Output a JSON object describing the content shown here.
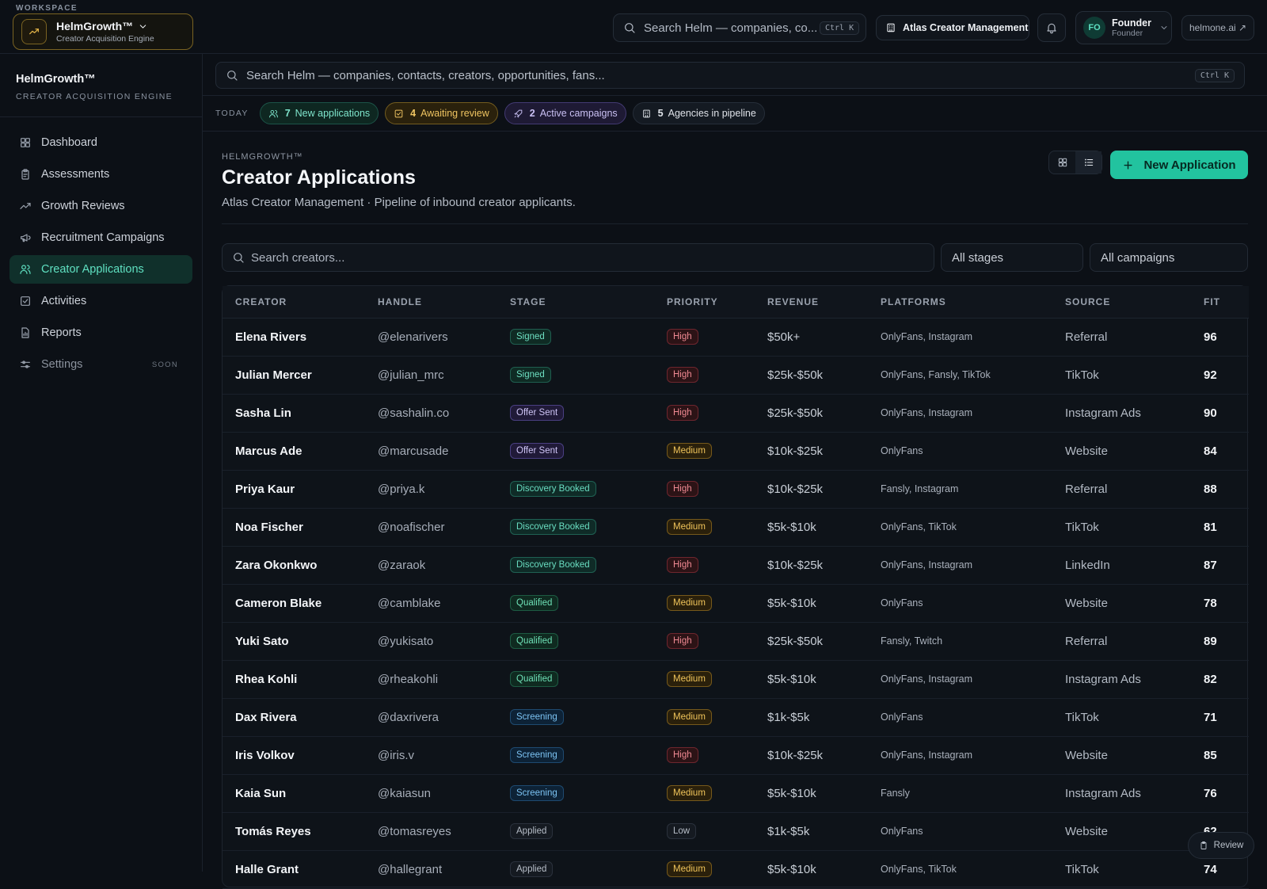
{
  "topbar": {
    "workspace_label": "WORKSPACE",
    "workspace_name": "HelmGrowth™",
    "workspace_sub": "Creator Acquisition Engine",
    "search_placeholder": "Search Helm — companies, co...",
    "search_shortcut": "Ctrl K",
    "org_name": "Atlas Creator Management",
    "user_initials": "FO",
    "user_name": "Founder",
    "user_role": "Founder",
    "external_link": "helmone.ai ↗"
  },
  "sidebar": {
    "brand_name": "HelmGrowth™",
    "brand_tag": "CREATOR ACQUISITION ENGINE",
    "items": [
      {
        "label": "Dashboard",
        "icon": "grid-icon"
      },
      {
        "label": "Assessments",
        "icon": "clipboard-icon"
      },
      {
        "label": "Growth Reviews",
        "icon": "trend-icon"
      },
      {
        "label": "Recruitment Campaigns",
        "icon": "megaphone-icon"
      },
      {
        "label": "Creator Applications",
        "icon": "users-icon",
        "active": true
      },
      {
        "label": "Activities",
        "icon": "check-square-icon"
      },
      {
        "label": "Reports",
        "icon": "report-icon"
      },
      {
        "label": "Settings",
        "icon": "sliders-icon",
        "badge": "SOON"
      }
    ]
  },
  "global_search": {
    "placeholder": "Search Helm — companies, contacts, creators, opportunities, fans...",
    "shortcut": "Ctrl K"
  },
  "today": {
    "label": "TODAY",
    "pills": [
      {
        "count": "7",
        "text": "New applications",
        "color": "#7fe6cd"
      },
      {
        "count": "4",
        "text": "Awaiting review",
        "color": "#efc461"
      },
      {
        "count": "2",
        "text": "Active campaigns",
        "color": "#c9c0f3"
      },
      {
        "count": "5",
        "text": "Agencies in pipeline",
        "color": "#dfe3e9"
      }
    ]
  },
  "page": {
    "eyebrow": "HELMGROWTH™",
    "title": "Creator Applications",
    "subtitle": "Atlas Creator Management · Pipeline of inbound creator applicants.",
    "new_button": "New Application"
  },
  "filters": {
    "search_placeholder": "Search creators...",
    "stage": "All stages",
    "campaign": "All campaigns"
  },
  "table": {
    "columns": [
      "CREATOR",
      "HANDLE",
      "STAGE",
      "PRIORITY",
      "REVENUE",
      "PLATFORMS",
      "SOURCE",
      "FIT"
    ],
    "rows": [
      {
        "creator": "Elena Rivers",
        "handle": "@elenarivers",
        "stage": "Signed",
        "priority": "High",
        "revenue": "$50k+",
        "platforms": "OnlyFans, Instagram",
        "source": "Referral",
        "fit": "96"
      },
      {
        "creator": "Julian Mercer",
        "handle": "@julian_mrc",
        "stage": "Signed",
        "priority": "High",
        "revenue": "$25k-$50k",
        "platforms": "OnlyFans, Fansly, TikTok",
        "source": "TikTok",
        "fit": "92"
      },
      {
        "creator": "Sasha Lin",
        "handle": "@sashalin.co",
        "stage": "Offer Sent",
        "priority": "High",
        "revenue": "$25k-$50k",
        "platforms": "OnlyFans, Instagram",
        "source": "Instagram Ads",
        "fit": "90"
      },
      {
        "creator": "Marcus Ade",
        "handle": "@marcusade",
        "stage": "Offer Sent",
        "priority": "Medium",
        "revenue": "$10k-$25k",
        "platforms": "OnlyFans",
        "source": "Website",
        "fit": "84"
      },
      {
        "creator": "Priya Kaur",
        "handle": "@priya.k",
        "stage": "Discovery Booked",
        "priority": "High",
        "revenue": "$10k-$25k",
        "platforms": "Fansly, Instagram",
        "source": "Referral",
        "fit": "88"
      },
      {
        "creator": "Noa Fischer",
        "handle": "@noafischer",
        "stage": "Discovery Booked",
        "priority": "Medium",
        "revenue": "$5k-$10k",
        "platforms": "OnlyFans, TikTok",
        "source": "TikTok",
        "fit": "81"
      },
      {
        "creator": "Zara Okonkwo",
        "handle": "@zaraok",
        "stage": "Discovery Booked",
        "priority": "High",
        "revenue": "$10k-$25k",
        "platforms": "OnlyFans, Instagram",
        "source": "LinkedIn",
        "fit": "87"
      },
      {
        "creator": "Cameron Blake",
        "handle": "@camblake",
        "stage": "Qualified",
        "priority": "Medium",
        "revenue": "$5k-$10k",
        "platforms": "OnlyFans",
        "source": "Website",
        "fit": "78"
      },
      {
        "creator": "Yuki Sato",
        "handle": "@yukisato",
        "stage": "Qualified",
        "priority": "High",
        "revenue": "$25k-$50k",
        "platforms": "Fansly, Twitch",
        "source": "Referral",
        "fit": "89"
      },
      {
        "creator": "Rhea Kohli",
        "handle": "@rheakohli",
        "stage": "Qualified",
        "priority": "Medium",
        "revenue": "$5k-$10k",
        "platforms": "OnlyFans, Instagram",
        "source": "Instagram Ads",
        "fit": "82"
      },
      {
        "creator": "Dax Rivera",
        "handle": "@daxrivera",
        "stage": "Screening",
        "priority": "Medium",
        "revenue": "$1k-$5k",
        "platforms": "OnlyFans",
        "source": "TikTok",
        "fit": "71"
      },
      {
        "creator": "Iris Volkov",
        "handle": "@iris.v",
        "stage": "Screening",
        "priority": "High",
        "revenue": "$10k-$25k",
        "platforms": "OnlyFans, Instagram",
        "source": "Website",
        "fit": "85"
      },
      {
        "creator": "Kaia Sun",
        "handle": "@kaiasun",
        "stage": "Screening",
        "priority": "Medium",
        "revenue": "$5k-$10k",
        "platforms": "Fansly",
        "source": "Instagram Ads",
        "fit": "76"
      },
      {
        "creator": "Tomás Reyes",
        "handle": "@tomasreyes",
        "stage": "Applied",
        "priority": "Low",
        "revenue": "$1k-$5k",
        "platforms": "OnlyFans",
        "source": "Website",
        "fit": "62"
      },
      {
        "creator": "Halle Grant",
        "handle": "@hallegrant",
        "stage": "Applied",
        "priority": "Medium",
        "revenue": "$5k-$10k",
        "platforms": "OnlyFans, TikTok",
        "source": "TikTok",
        "fit": "74"
      }
    ]
  },
  "review_button": "Review",
  "colors": {
    "accent": "#22c39f",
    "background": "#0c1016",
    "workspace_border": "#7a6322"
  }
}
